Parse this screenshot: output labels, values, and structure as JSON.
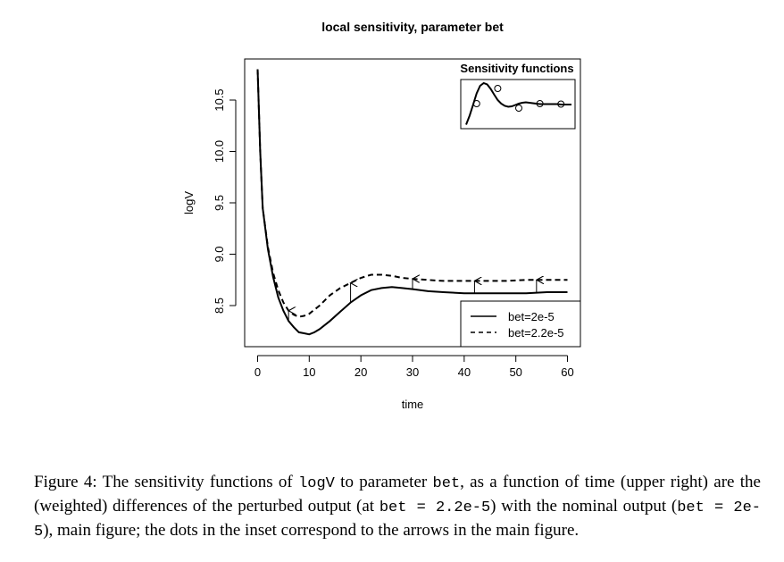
{
  "figure": {
    "caption_parts": [
      {
        "text": "Figure 4: The sensitivity functions of ",
        "mono": false
      },
      {
        "text": "logV",
        "mono": true
      },
      {
        "text": " to parameter ",
        "mono": false
      },
      {
        "text": "bet",
        "mono": true
      },
      {
        "text": ", as a function of time (upper right) are the (weighted) differences of the perturbed output (at ",
        "mono": false
      },
      {
        "text": "bet = 2.2e-5",
        "mono": true
      },
      {
        "text": ") with the nominal output (",
        "mono": false
      },
      {
        "text": "bet = 2e-5",
        "mono": true
      },
      {
        "text": "), main figure; the dots in the inset correspond to the arrows in the main figure.",
        "mono": false
      }
    ]
  },
  "chart_data": [
    {
      "type": "line",
      "title": "local sensitivity, parameter bet",
      "xlabel": "time",
      "ylabel": "logV",
      "xlim": [
        -2.5,
        62.5
      ],
      "ylim": [
        8.1,
        10.9
      ],
      "xticks": [
        0,
        10,
        20,
        30,
        40,
        50,
        60
      ],
      "yticks": [
        8.5,
        9.0,
        9.5,
        10.0,
        10.5
      ],
      "xtick_labels": [
        "0",
        "10",
        "20",
        "30",
        "40",
        "50",
        "60"
      ],
      "ytick_labels": [
        "8.5",
        "9.0",
        "9.5",
        "10.0",
        "10.5"
      ],
      "legend_position": "bottom-right",
      "series": [
        {
          "name": "bet=2e-5",
          "style": "solid",
          "x": [
            0,
            0.5,
            1,
            2,
            3,
            4,
            5,
            6,
            7,
            8,
            9,
            10,
            11,
            12,
            14,
            16,
            18,
            20,
            22,
            24,
            26,
            28,
            30,
            33,
            36,
            40,
            44,
            48,
            52,
            56,
            60
          ],
          "y": [
            10.8,
            10.0,
            9.45,
            9.05,
            8.78,
            8.58,
            8.45,
            8.35,
            8.29,
            8.24,
            8.23,
            8.22,
            8.24,
            8.27,
            8.35,
            8.44,
            8.53,
            8.6,
            8.65,
            8.67,
            8.68,
            8.67,
            8.66,
            8.64,
            8.63,
            8.62,
            8.62,
            8.62,
            8.62,
            8.63,
            8.63
          ]
        },
        {
          "name": "bet=2.2e-5",
          "style": "dashed",
          "x": [
            0,
            0.5,
            1,
            2,
            3,
            4,
            5,
            6,
            7,
            8,
            9,
            10,
            12,
            14,
            16,
            18,
            20,
            22,
            24,
            26,
            28,
            30,
            33,
            36,
            40,
            44,
            48,
            52,
            56,
            60
          ],
          "y": [
            10.8,
            10.0,
            9.45,
            9.07,
            8.82,
            8.65,
            8.53,
            8.45,
            8.41,
            8.39,
            8.4,
            8.42,
            8.5,
            8.6,
            8.67,
            8.72,
            8.77,
            8.8,
            8.8,
            8.79,
            8.77,
            8.76,
            8.75,
            8.74,
            8.74,
            8.74,
            8.74,
            8.75,
            8.75,
            8.75
          ]
        }
      ],
      "arrows": [
        {
          "x": 6,
          "from": 8.35,
          "to": 8.45
        },
        {
          "x": 18,
          "from": 8.53,
          "to": 8.72
        },
        {
          "x": 30,
          "from": 8.66,
          "to": 8.76
        },
        {
          "x": 42,
          "from": 8.62,
          "to": 8.74
        },
        {
          "x": 54,
          "from": 8.62,
          "to": 8.75
        }
      ]
    },
    {
      "type": "line",
      "title": "Sensitivity functions",
      "xlim": [
        0,
        60
      ],
      "ylim": [
        0,
        1
      ],
      "series": [
        {
          "x": [
            0,
            2,
            4,
            6,
            8,
            10,
            12,
            14,
            16,
            18,
            20,
            22,
            24,
            26,
            28,
            30,
            32,
            34,
            36,
            38,
            40,
            42,
            44,
            46,
            48,
            50,
            52,
            54,
            56,
            58,
            60
          ],
          "y": [
            0.05,
            0.25,
            0.5,
            0.75,
            0.92,
            0.98,
            0.95,
            0.85,
            0.72,
            0.6,
            0.52,
            0.47,
            0.45,
            0.46,
            0.49,
            0.52,
            0.54,
            0.55,
            0.54,
            0.53,
            0.52,
            0.51,
            0.51,
            0.51,
            0.51,
            0.51,
            0.51,
            0.5,
            0.5,
            0.5,
            0.5
          ]
        }
      ],
      "points": {
        "x": [
          6,
          18,
          30,
          42,
          54
        ],
        "y": [
          0.52,
          0.86,
          0.42,
          0.52,
          0.51
        ]
      }
    }
  ]
}
